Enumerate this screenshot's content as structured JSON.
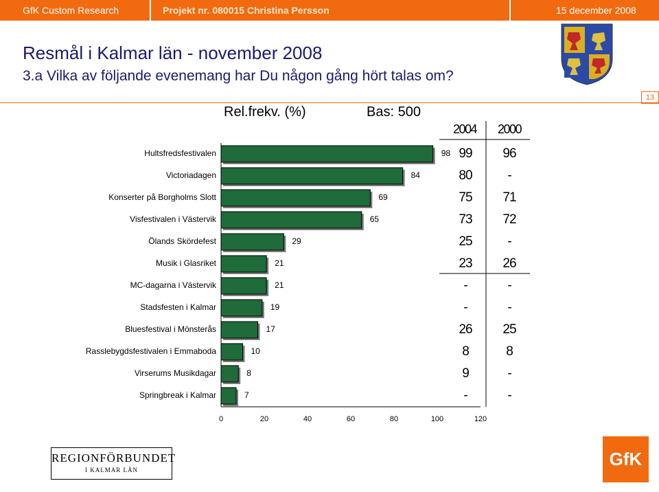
{
  "header": {
    "company": "GfK Custom Research",
    "project": "Projekt nr. 080015 Christina Persson",
    "date": "15 december 2008"
  },
  "title": "Resmål i Kalmar län - november 2008",
  "question": "3.a Vilka av följande evenemang har Du någon gång hört talas om?",
  "page_number": "13",
  "colors": {
    "accent": "#f26a10",
    "bar": "#1f6b3a",
    "title": "#1a1a6e"
  },
  "chart_data": {
    "type": "bar",
    "orientation": "horizontal",
    "header_left": "Rel.frekv. (%)",
    "header_right": "Bas: 500",
    "categories": [
      "Hultsfredsfestivalen",
      "Victoriadagen",
      "Konserter på Borgholms Slott",
      "Visfestivalen i Västervik",
      "Ölands Skördefest",
      "Musik i Glasriket",
      "MC-dagarna i Västervik",
      "Stadsfesten i Kalmar",
      "Bluesfestival i Mönsterås",
      "Rasslebygdsfestivalen i Emmaboda",
      "Virserums Musikdagar",
      "Springbreak i Kalmar"
    ],
    "values": [
      98,
      84,
      69,
      65,
      29,
      21,
      21,
      19,
      17,
      10,
      8,
      7
    ],
    "xlim": [
      0,
      120
    ],
    "xticks": [
      "0",
      "20",
      "40",
      "60",
      "80",
      "100",
      "120"
    ],
    "comparison": {
      "headers": [
        "2004",
        "2000"
      ],
      "y2004": [
        "99",
        "80",
        "75",
        "73",
        "25",
        "23",
        "-",
        "-",
        "26",
        "8",
        "9",
        "-"
      ],
      "y2000": [
        "96",
        "-",
        "71",
        "72",
        "-",
        "26",
        "-",
        "-",
        "25",
        "8",
        "-",
        "-"
      ]
    }
  },
  "logos": {
    "region_line1": "REGIONFÖRBUNDET",
    "region_line2": "I KALMAR LÄN",
    "gfk": "GfK"
  }
}
